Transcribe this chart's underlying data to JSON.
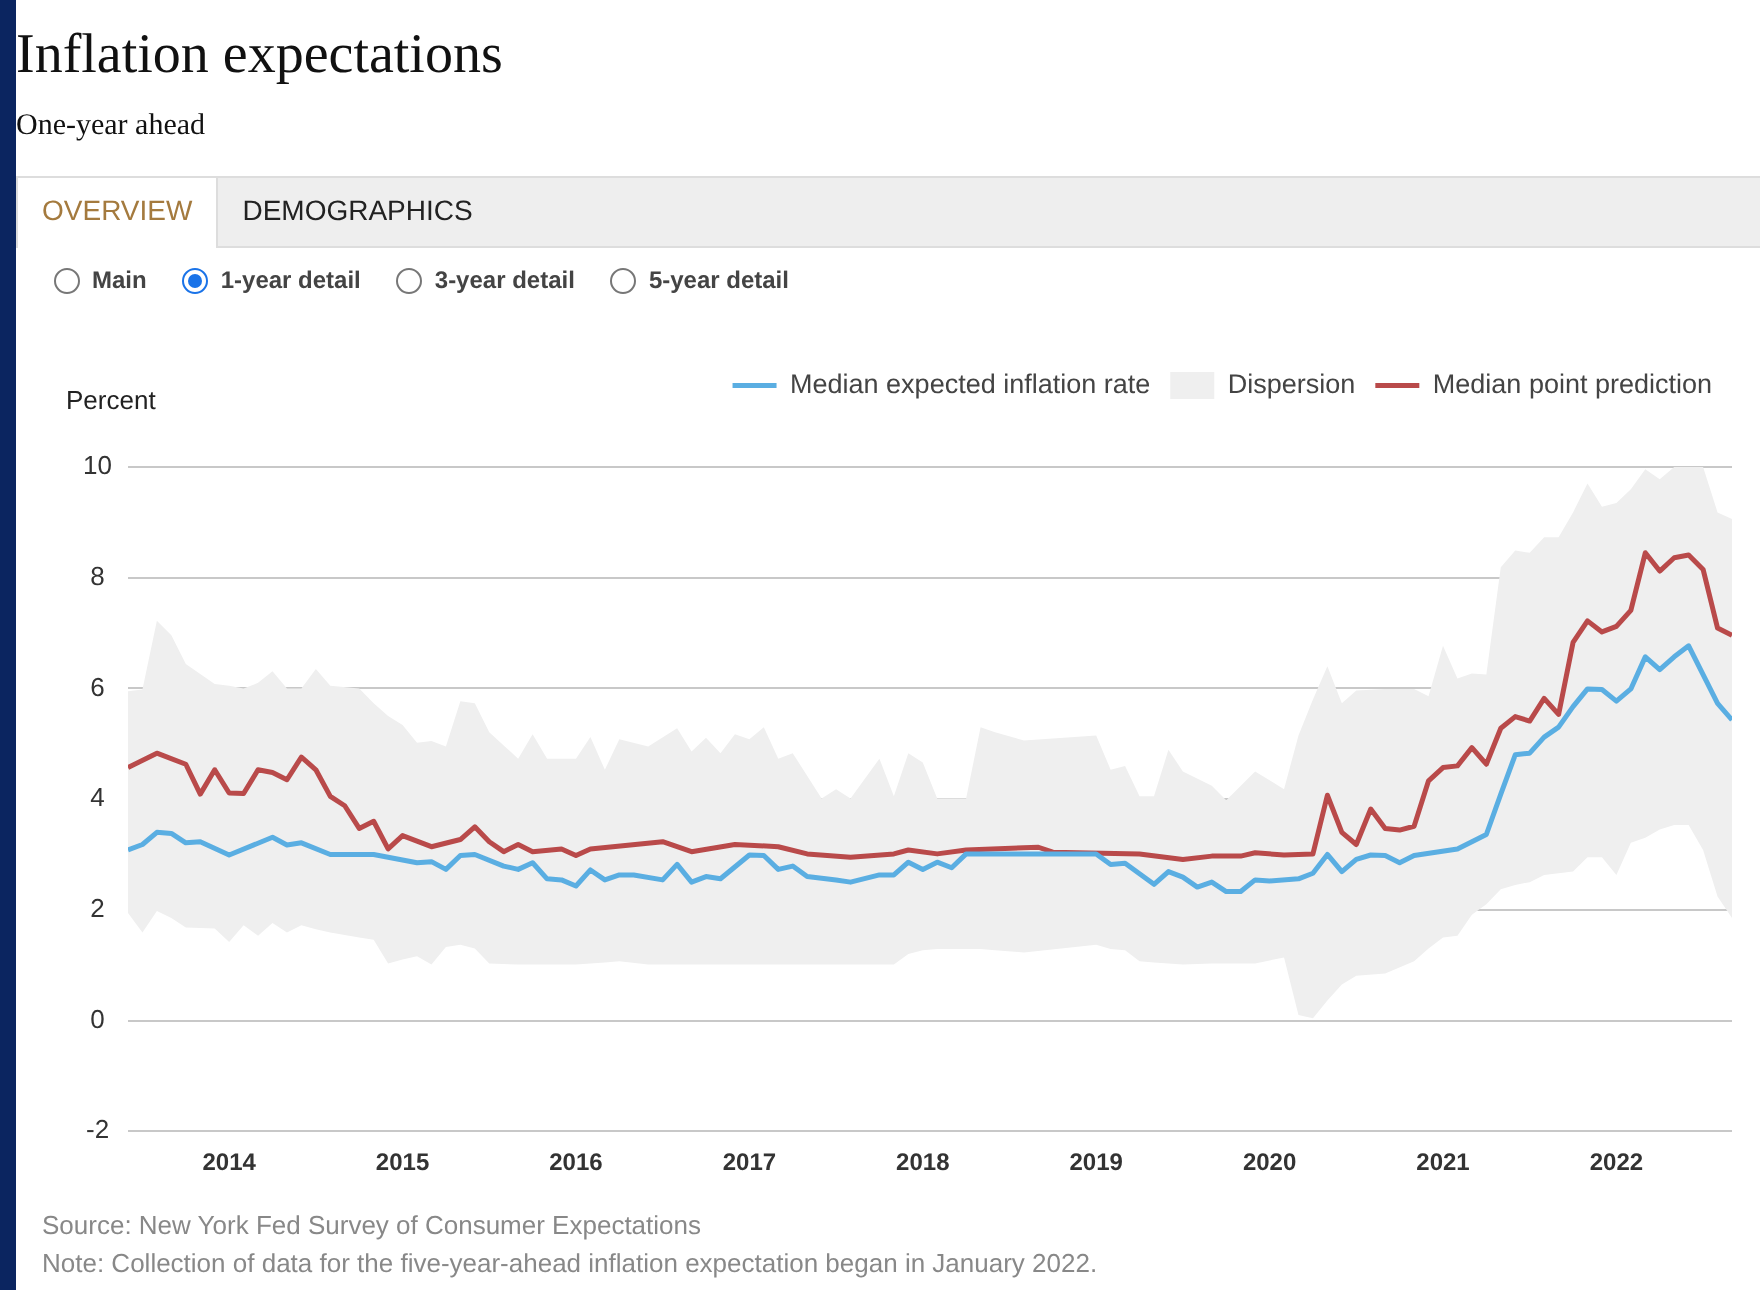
{
  "chart_data": {
    "type": "line",
    "title": "Inflation expectations",
    "subtitle": "One-year ahead",
    "ylabel": "Percent",
    "annotations": [
      "OVERVIEW",
      "DEMOGRAPHICS",
      "Main",
      "1-year detail",
      "3-year detail",
      "5-year detail",
      "Source: New York Fed Survey of Consumer Expectations",
      "Note: Collection of data for the five-year-ahead inflation expectation began in January 2022."
    ],
    "xlim": [
      "2013-06",
      "2022-09"
    ],
    "xticks": [
      "2014",
      "2015",
      "2016",
      "2017",
      "2018",
      "2019",
      "2020",
      "2021",
      "2022"
    ],
    "ylim": [
      -2,
      10
    ],
    "yticks": [
      -2,
      0,
      2,
      4,
      6,
      8,
      10
    ],
    "grid": "y",
    "legend": "top right",
    "marker": "none",
    "line_style": "solid",
    "series": [
      {
        "name": "Median expected inflation rate",
        "color": "#5aaee2",
        "x": [
          "2013-06",
          "2013-07",
          "2013-08",
          "2013-09",
          "2013-10",
          "2013-11",
          "2013-12",
          "2014-01",
          "2014-02",
          "2014-03",
          "2014-04",
          "2014-05",
          "2014-06",
          "2014-07",
          "2014-08",
          "2014-10",
          "2014-11",
          "2014-12",
          "2015-01",
          "2015-02",
          "2015-03",
          "2015-04",
          "2015-05",
          "2015-06",
          "2015-07",
          "2015-08",
          "2015-09",
          "2015-10",
          "2015-11",
          "2015-12",
          "2016-01",
          "2016-02",
          "2016-03",
          "2016-04",
          "2016-05",
          "2016-06",
          "2016-07",
          "2016-08",
          "2016-09",
          "2016-10",
          "2016-11",
          "2016-12",
          "2017-01",
          "2017-02",
          "2017-03",
          "2017-04",
          "2017-05",
          "2017-06",
          "2017-07",
          "2017-08",
          "2017-10",
          "2017-11",
          "2017-12",
          "2018-01",
          "2018-02",
          "2018-03",
          "2018-04",
          "2018-05",
          "2018-06",
          "2018-08",
          "2019-01",
          "2019-02",
          "2019-03",
          "2019-04",
          "2019-05",
          "2019-06",
          "2019-07",
          "2019-08",
          "2019-09",
          "2019-10",
          "2019-11",
          "2019-12",
          "2020-01",
          "2020-02",
          "2020-03",
          "2020-04",
          "2020-05",
          "2020-06",
          "2020-07",
          "2020-08",
          "2020-09",
          "2020-10",
          "2020-11",
          "2020-12",
          "2021-01",
          "2021-02",
          "2021-03",
          "2021-04",
          "2021-05",
          "2021-06",
          "2021-07",
          "2021-08",
          "2021-09",
          "2021-10",
          "2021-11",
          "2021-12",
          "2022-01",
          "2022-02",
          "2022-03",
          "2022-04",
          "2022-05",
          "2022-06",
          "2022-07",
          "2022-08",
          "2022-09"
        ],
        "values": [
          3.08,
          3.18,
          3.4,
          3.38,
          3.21,
          3.23,
          null,
          2.99,
          null,
          null,
          3.31,
          3.17,
          3.21,
          null,
          3.0,
          null,
          3.0,
          2.95,
          null,
          2.85,
          2.87,
          2.73,
          2.98,
          3.0,
          null,
          2.79,
          2.73,
          2.85,
          2.56,
          2.54,
          2.43,
          2.72,
          2.54,
          2.63,
          2.63,
          null,
          2.54,
          2.82,
          2.5,
          2.6,
          2.56,
          null,
          2.99,
          2.98,
          2.73,
          2.79,
          2.6,
          null,
          2.54,
          2.5,
          2.63,
          2.63,
          2.86,
          2.73,
          2.86,
          2.76,
          3.01,
          null,
          null,
          null,
          3.01,
          2.82,
          2.84,
          null,
          2.46,
          2.69,
          2.59,
          2.41,
          2.5,
          2.33,
          2.33,
          2.54,
          2.52,
          null,
          2.56,
          2.66,
          3.0,
          2.69,
          2.91,
          2.99,
          2.98,
          2.85,
          2.98,
          null,
          null,
          3.1,
          3.23,
          3.36,
          4.09,
          4.8,
          4.83,
          5.12,
          5.3,
          5.67,
          5.99,
          5.98,
          5.77,
          5.99,
          6.57,
          6.34,
          6.57,
          6.77,
          6.25,
          5.73,
          5.43
        ],
        "lower": [
          1.94,
          1.59,
          1.98,
          1.85,
          1.68,
          null,
          1.66,
          1.42,
          1.72,
          1.53,
          1.76,
          1.59,
          1.72,
          1.65,
          1.59,
          1.5,
          1.46,
          1.03,
          1.1,
          1.16,
          1.01,
          1.33,
          1.37,
          1.3,
          1.03,
          null,
          1.01,
          1.01,
          1.01,
          null,
          1.01,
          1.03,
          1.05,
          1.07,
          null,
          1.01,
          null,
          1.01,
          1.01,
          1.01,
          1.01,
          1.01,
          1.01,
          1.01,
          1.01,
          1.01,
          null,
          1.01,
          1.01,
          1.01,
          1.01,
          1.01,
          1.2,
          1.27,
          1.29,
          null,
          1.29,
          1.29,
          1.27,
          1.23,
          1.37,
          1.29,
          1.27,
          1.07,
          1.05,
          1.03,
          1.01,
          null,
          1.03,
          1.03,
          null,
          1.03,
          null,
          1.14,
          0.1,
          0.04,
          0.36,
          0.65,
          0.81,
          null,
          0.85,
          null,
          1.07,
          1.3,
          1.5,
          1.53,
          1.91,
          2.1,
          2.37,
          2.45,
          2.5,
          2.63,
          2.66,
          2.69,
          2.95,
          2.95,
          2.63,
          3.21,
          3.3,
          3.45,
          3.53,
          3.53,
          3.08,
          2.24,
          1.85
        ],
        "upper": [
          5.95,
          5.98,
          7.22,
          6.96,
          6.44,
          null,
          6.08,
          6.05,
          6.0,
          6.1,
          6.31,
          6.0,
          6.0,
          6.35,
          6.05,
          6.0,
          5.73,
          5.5,
          5.34,
          5.02,
          5.05,
          4.95,
          5.77,
          5.73,
          5.21,
          null,
          4.73,
          5.17,
          4.73,
          null,
          4.73,
          5.12,
          4.53,
          5.08,
          null,
          4.95,
          null,
          5.28,
          4.86,
          5.11,
          4.83,
          5.17,
          5.08,
          5.3,
          4.73,
          4.83,
          null,
          4.01,
          4.18,
          4.01,
          4.73,
          4.05,
          4.83,
          4.66,
          4.01,
          null,
          4.01,
          5.3,
          5.21,
          5.06,
          5.15,
          4.53,
          4.6,
          4.05,
          4.05,
          4.89,
          4.5,
          null,
          4.24,
          3.98,
          null,
          4.5,
          null,
          4.18,
          5.15,
          5.8,
          6.4,
          5.73,
          5.96,
          null,
          5.99,
          null,
          5.99,
          5.86,
          6.77,
          6.18,
          6.27,
          6.25,
          8.19,
          8.49,
          8.45,
          8.73,
          8.73,
          9.18,
          9.7,
          9.28,
          9.35,
          9.6,
          9.96,
          9.78,
          10.0,
          10.0,
          10.0,
          9.18,
          9.06
        ]
      },
      {
        "name": "Dispersion",
        "type": "area",
        "color": "#efefef"
      },
      {
        "name": "Median point prediction",
        "color": "#b94a4a",
        "x": [
          "2013-06",
          "2013-08",
          "2013-10",
          "2013-11",
          "2013-12",
          "2014-01",
          "2014-02",
          "2014-03",
          "2014-04",
          "2014-05",
          "2014-06",
          "2014-07",
          "2014-08",
          "2014-09",
          "2014-10",
          "2014-11",
          "2014-12",
          "2015-01",
          "2015-03",
          "2015-05",
          "2015-06",
          "2015-07",
          "2015-08",
          "2015-09",
          "2015-10",
          "2015-12",
          "2016-01",
          "2016-02",
          "2016-07",
          "2016-09",
          "2016-12",
          "2017-03",
          "2017-05",
          "2017-08",
          "2017-11",
          "2017-12",
          "2018-02",
          "2018-04",
          "2018-09",
          "2018-10",
          "2019-04",
          "2019-07",
          "2019-09",
          "2019-11",
          "2019-12",
          "2020-02",
          "2020-04",
          "2020-05",
          "2020-06",
          "2020-07",
          "2020-08",
          "2020-09",
          "2020-10",
          "2020-11",
          "2020-12",
          "2021-01",
          "2021-02",
          "2021-03",
          "2021-04",
          "2021-05",
          "2021-06",
          "2021-07",
          "2021-08",
          "2021-09",
          "2021-10",
          "2021-11",
          "2021-12",
          "2022-01",
          "2022-02",
          "2022-03",
          "2022-04",
          "2022-05",
          "2022-06",
          "2022-07",
          "2022-08",
          "2022-09"
        ],
        "values": [
          4.57,
          4.83,
          4.63,
          4.09,
          4.53,
          4.11,
          4.1,
          4.53,
          4.48,
          4.35,
          4.76,
          4.53,
          4.05,
          3.88,
          3.47,
          3.6,
          3.1,
          3.34,
          3.14,
          3.27,
          3.5,
          3.23,
          3.05,
          3.18,
          3.05,
          3.1,
          2.98,
          3.1,
          3.23,
          3.05,
          3.18,
          3.14,
          3.01,
          2.95,
          3.01,
          3.08,
          3.01,
          3.08,
          3.13,
          3.04,
          3.01,
          2.91,
          2.97,
          2.97,
          3.03,
          2.99,
          3.01,
          4.07,
          3.4,
          3.18,
          3.82,
          3.47,
          3.44,
          3.51,
          4.33,
          4.57,
          4.6,
          4.93,
          4.63,
          5.28,
          5.49,
          5.41,
          5.82,
          5.53,
          6.83,
          7.22,
          7.02,
          7.12,
          7.41,
          8.45,
          8.12,
          8.36,
          8.41,
          8.15,
          7.09,
          6.96
        ]
      }
    ]
  }
}
